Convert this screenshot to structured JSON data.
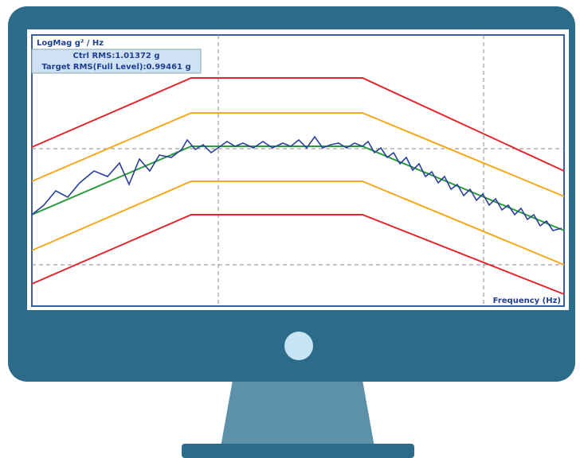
{
  "screen": {
    "y_label": "LogMag g² / Hz",
    "stats": [
      "Ctrl RMS:1.01372 g",
      "Target RMS(Full Level):0.99461 g"
    ],
    "x_label": "Frequency (Hz)"
  }
}
